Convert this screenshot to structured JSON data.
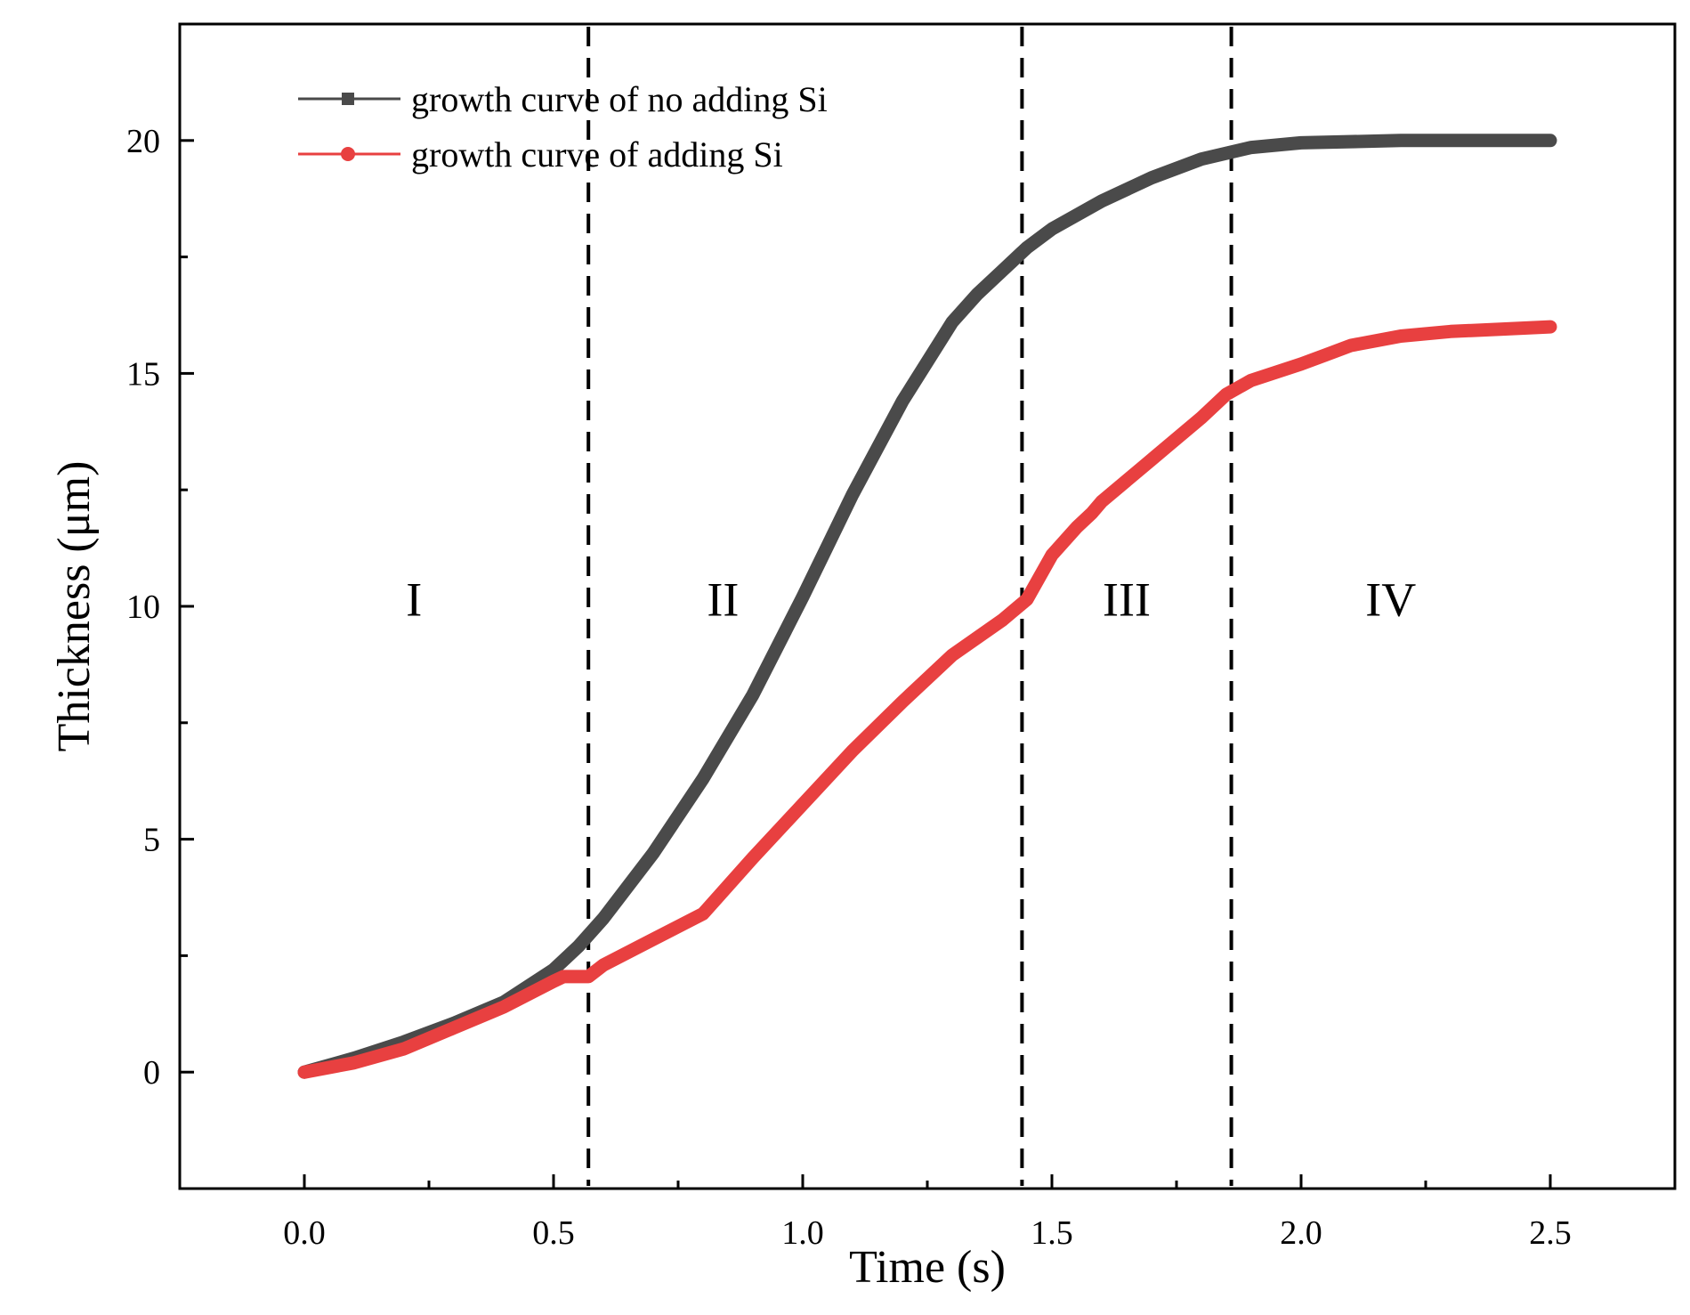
{
  "chart_data": {
    "type": "line",
    "title": "",
    "xlabel": "Time (s)",
    "ylabel": "Thickness (μm)",
    "xlim": [
      -0.25,
      2.75
    ],
    "ylim": [
      -2.5,
      22.5
    ],
    "xticks": [
      0.0,
      0.5,
      1.0,
      1.5,
      2.0,
      2.5
    ],
    "xtick_labels": [
      "0.0",
      "0.5",
      "1.0",
      "1.5",
      "2.0",
      "2.5"
    ],
    "yticks": [
      0,
      5,
      10,
      15,
      20
    ],
    "ytick_labels": [
      "0",
      "5",
      "10",
      "15",
      "20"
    ],
    "grid": false,
    "legend_position": "top-left",
    "series": [
      {
        "name": "growth curve of no adding Si",
        "color": "#4a4a4a",
        "marker": "square",
        "x": [
          0.0,
          0.1,
          0.2,
          0.3,
          0.4,
          0.5,
          0.55,
          0.6,
          0.7,
          0.8,
          0.9,
          1.0,
          1.05,
          1.1,
          1.2,
          1.3,
          1.35,
          1.4,
          1.45,
          1.5,
          1.6,
          1.7,
          1.8,
          1.9,
          2.0,
          2.2,
          2.5
        ],
        "y": [
          0.0,
          0.3,
          0.65,
          1.05,
          1.5,
          2.2,
          2.7,
          3.3,
          4.7,
          6.3,
          8.1,
          10.2,
          11.3,
          12.4,
          14.4,
          16.1,
          16.7,
          17.2,
          17.7,
          18.1,
          18.7,
          19.2,
          19.6,
          19.85,
          19.95,
          20.0,
          20.0
        ]
      },
      {
        "name": "growth curve of adding Si",
        "color": "#e84040",
        "marker": "circle",
        "x": [
          0.0,
          0.1,
          0.2,
          0.3,
          0.4,
          0.5,
          0.52,
          0.57,
          0.6,
          0.7,
          0.8,
          0.9,
          1.0,
          1.1,
          1.2,
          1.3,
          1.4,
          1.45,
          1.5,
          1.55,
          1.58,
          1.6,
          1.7,
          1.8,
          1.85,
          1.9,
          2.0,
          2.05,
          2.1,
          2.2,
          2.3,
          2.4,
          2.5
        ],
        "y": [
          0.0,
          0.2,
          0.5,
          0.95,
          1.4,
          1.95,
          2.05,
          2.05,
          2.3,
          2.85,
          3.4,
          4.6,
          5.75,
          6.9,
          7.95,
          8.95,
          9.7,
          10.15,
          11.1,
          11.7,
          12.0,
          12.25,
          13.15,
          14.05,
          14.55,
          14.85,
          15.2,
          15.4,
          15.6,
          15.8,
          15.9,
          15.95,
          16.0
        ]
      }
    ],
    "vlines": [
      0.57,
      1.44,
      1.86
    ],
    "region_labels": [
      {
        "text": "I",
        "x": 0.22,
        "y": 9.8
      },
      {
        "text": "II",
        "x": 0.84,
        "y": 9.8
      },
      {
        "text": "III",
        "x": 1.65,
        "y": 9.8
      },
      {
        "text": "IV",
        "x": 2.18,
        "y": 9.8
      }
    ]
  }
}
